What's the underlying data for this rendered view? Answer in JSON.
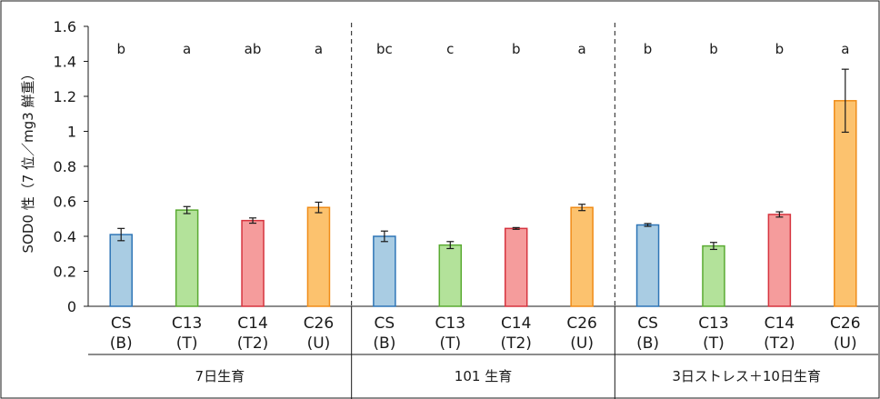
{
  "chart_data": {
    "type": "bar",
    "ylabel": "SOD0 性（7 位／mg3 鮮重）",
    "ylim": [
      0,
      1.6
    ],
    "yticks": [
      0,
      0.2,
      0.4,
      0.6,
      0.8,
      1,
      1.2,
      1.4,
      1.6
    ],
    "ytick_labels": [
      "0",
      "0.2",
      "0.4",
      "0.6",
      "0.8",
      "1",
      "1.2",
      "1.4",
      "1.6"
    ],
    "grid": false,
    "groups": [
      {
        "label": "7日生育",
        "bars": [
          {
            "cat1": "CS",
            "cat2": "(B)",
            "value": 0.41,
            "err": 0.035,
            "letter": "b",
            "color": "#a9cce3",
            "stroke": "#2e75b6"
          },
          {
            "cat1": "C13",
            "cat2": "(T)",
            "value": 0.55,
            "err": 0.02,
            "letter": "a",
            "color": "#b3e29a",
            "stroke": "#5aaa32"
          },
          {
            "cat1": "C14",
            "cat2": "(T2)",
            "value": 0.49,
            "err": 0.015,
            "letter": "ab",
            "color": "#f59c9c",
            "stroke": "#d6343f"
          },
          {
            "cat1": "C26",
            "cat2": "(U)",
            "value": 0.565,
            "err": 0.03,
            "letter": "a",
            "color": "#fcc26e",
            "stroke": "#f08c18"
          }
        ]
      },
      {
        "label": "101 生育",
        "bars": [
          {
            "cat1": "CS",
            "cat2": "(B)",
            "value": 0.4,
            "err": 0.03,
            "letter": "bc",
            "color": "#a9cce3",
            "stroke": "#2e75b6"
          },
          {
            "cat1": "C13",
            "cat2": "(T)",
            "value": 0.35,
            "err": 0.02,
            "letter": "c",
            "color": "#b3e29a",
            "stroke": "#5aaa32"
          },
          {
            "cat1": "C14",
            "cat2": "(T2)",
            "value": 0.445,
            "err": 0.005,
            "letter": "b",
            "color": "#f59c9c",
            "stroke": "#d6343f"
          },
          {
            "cat1": "C26",
            "cat2": "(U)",
            "value": 0.565,
            "err": 0.018,
            "letter": "a",
            "color": "#fcc26e",
            "stroke": "#f08c18"
          }
        ]
      },
      {
        "label": "3日ストレス＋10日生育",
        "bars": [
          {
            "cat1": "CS",
            "cat2": "(B)",
            "value": 0.465,
            "err": 0.008,
            "letter": "b",
            "color": "#a9cce3",
            "stroke": "#2e75b6"
          },
          {
            "cat1": "C13",
            "cat2": "(T)",
            "value": 0.345,
            "err": 0.02,
            "letter": "b",
            "color": "#b3e29a",
            "stroke": "#5aaa32"
          },
          {
            "cat1": "C14",
            "cat2": "(T2)",
            "value": 0.525,
            "err": 0.015,
            "letter": "b",
            "color": "#f59c9c",
            "stroke": "#d6343f"
          },
          {
            "cat1": "C26",
            "cat2": "(U)",
            "value": 1.175,
            "err": 0.18,
            "letter": "a",
            "color": "#fcc26e",
            "stroke": "#f08c18"
          }
        ]
      }
    ]
  }
}
